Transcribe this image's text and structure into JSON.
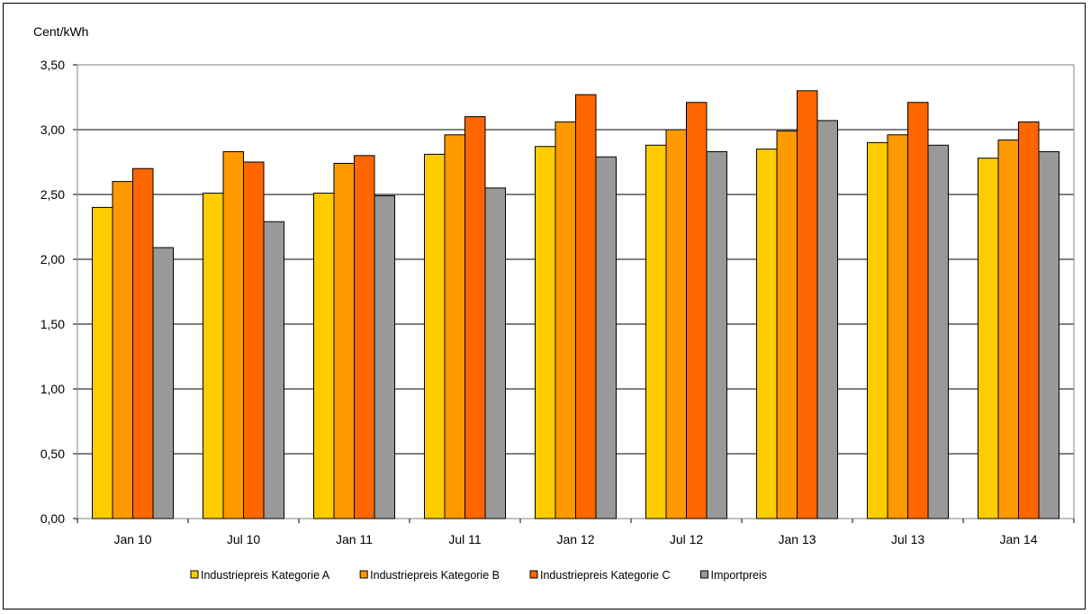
{
  "chart_data": {
    "type": "bar",
    "ylabel": "Cent/kWh",
    "categories": [
      "Jan 10",
      "Jul 10",
      "Jan 11",
      "Jul 11",
      "Jan 12",
      "Jul 12",
      "Jan 13",
      "Jul 13",
      "Jan 14"
    ],
    "ylim": [
      0,
      3.5
    ],
    "yticks": [
      "0,00",
      "0,50",
      "1,00",
      "1,50",
      "2,00",
      "2,50",
      "3,00",
      "3,50"
    ],
    "grid": true,
    "legend_position": "bottom",
    "series": [
      {
        "name": "Industriepreis Kategorie A",
        "color": "#FFCC00",
        "values": [
          2.4,
          2.51,
          2.51,
          2.81,
          2.87,
          2.88,
          2.85,
          2.9,
          2.78
        ]
      },
      {
        "name": "Industriepreis Kategorie B",
        "color": "#FF9900",
        "values": [
          2.6,
          2.83,
          2.74,
          2.96,
          3.06,
          3.0,
          2.99,
          2.96,
          2.92
        ]
      },
      {
        "name": "Industriepreis Kategorie C",
        "color": "#FF6600",
        "values": [
          2.7,
          2.75,
          2.8,
          3.1,
          3.27,
          3.21,
          3.3,
          3.21,
          3.06
        ]
      },
      {
        "name": "Importpreis",
        "color": "#999999",
        "values": [
          2.09,
          2.29,
          2.49,
          2.55,
          2.79,
          2.83,
          3.07,
          2.88,
          2.83
        ]
      }
    ]
  }
}
